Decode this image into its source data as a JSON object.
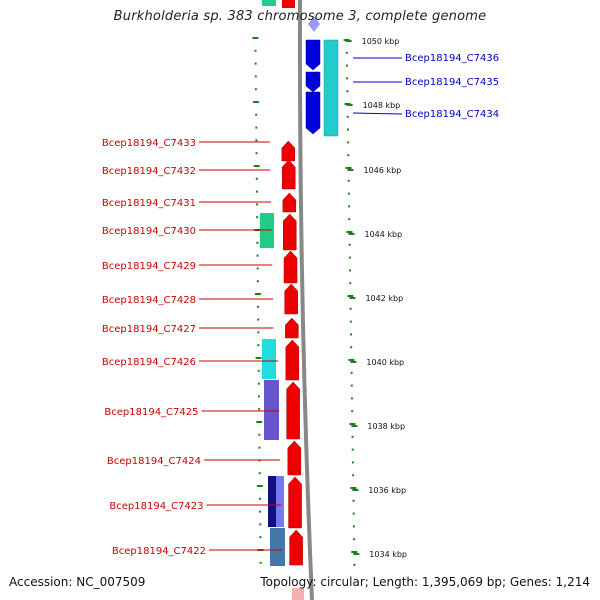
{
  "title": "Burkholderia sp. 383 chromosome 3, complete genome",
  "footer": {
    "accession": "Accession: NC_007509",
    "summary": "Topology: circular; Length: 1,395,069 bp; Genes: 1,214"
  },
  "colors": {
    "forward": "#ee0000",
    "reverse": "#0000dd",
    "left_label": "#cc0000",
    "right_label": "#0000cc",
    "ticks": "#1e7e1e",
    "backbone": "#888888"
  },
  "ruler": [
    "1050 kbp",
    "1048 kbp",
    "1046 kbp",
    "1044 kbp",
    "1042 kbp",
    "1040 kbp",
    "1038 kbp",
    "1036 kbp",
    "1034 kbp"
  ],
  "forward_genes": [
    "Bcep18194_C7433",
    "Bcep18194_C7432",
    "Bcep18194_C7431",
    "Bcep18194_C7430",
    "Bcep18194_C7429",
    "Bcep18194_C7428",
    "Bcep18194_C7427",
    "Bcep18194_C7426",
    "Bcep18194_C7425",
    "Bcep18194_C7424",
    "Bcep18194_C7423",
    "Bcep18194_C7422"
  ],
  "reverse_genes": [
    "Bcep18194_C7436",
    "Bcep18194_C7435",
    "Bcep18194_C7434"
  ]
}
